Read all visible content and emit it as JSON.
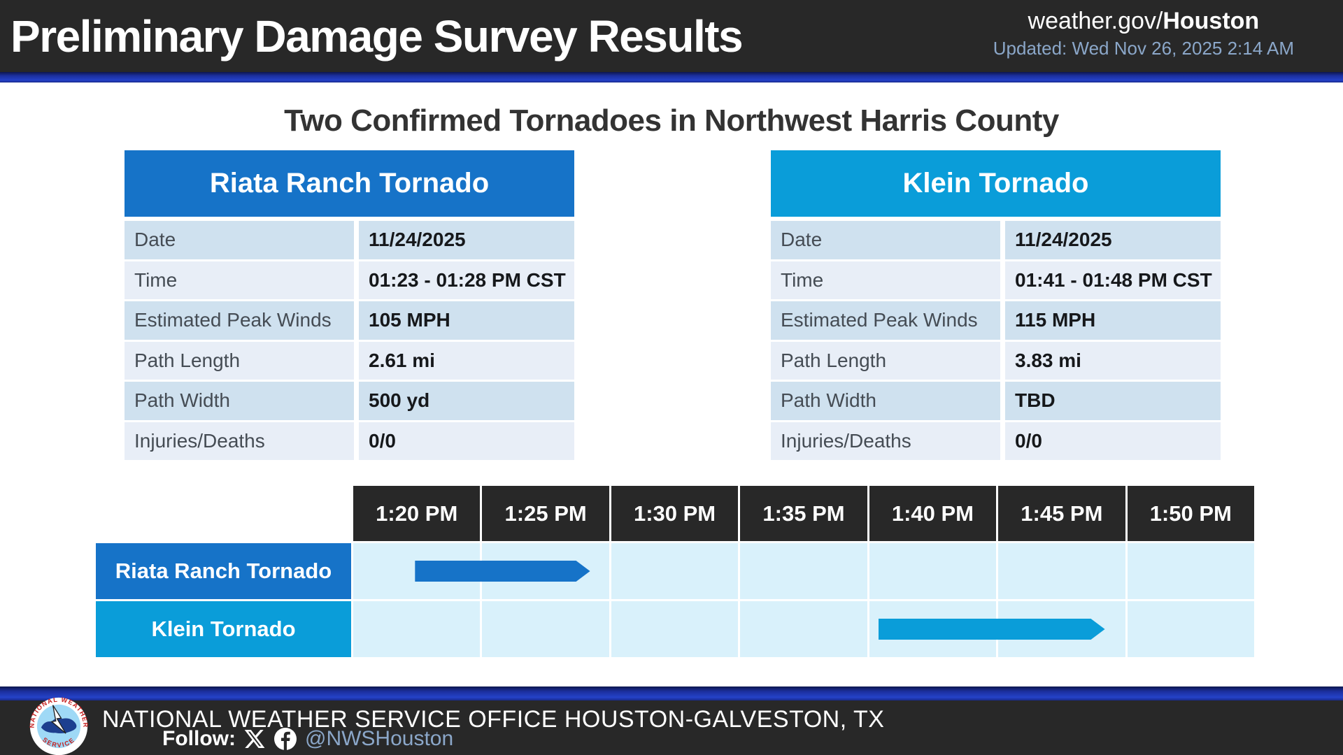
{
  "header": {
    "title": "Preliminary Damage Survey Results",
    "site_prefix": "weather.gov/",
    "site_bold": "Houston",
    "updated": "Updated: Wed Nov 26, 2025 2:14 AM"
  },
  "heading": "Two Confirmed Tornadoes in Northwest Harris County",
  "tables": [
    {
      "title": "Riata Ranch Tornado",
      "accent": "#1673c8",
      "rows": [
        {
          "label": "Date",
          "value": "11/24/2025"
        },
        {
          "label": "Time",
          "value": "01:23 - 01:28 PM CST"
        },
        {
          "label": "Estimated Peak Winds",
          "value": "105 MPH"
        },
        {
          "label": "Path Length",
          "value": "2.61 mi"
        },
        {
          "label": "Path Width",
          "value": "500 yd"
        },
        {
          "label": "Injuries/Deaths",
          "value": "0/0"
        }
      ]
    },
    {
      "title": "Klein Tornado",
      "accent": "#0a9dd9",
      "rows": [
        {
          "label": "Date",
          "value": "11/24/2025"
        },
        {
          "label": "Time",
          "value": "01:41 - 01:48 PM CST"
        },
        {
          "label": "Estimated Peak Winds",
          "value": "115 MPH"
        },
        {
          "label": "Path Length",
          "value": "3.83 mi"
        },
        {
          "label": "Path Width",
          "value": "TBD"
        },
        {
          "label": "Injuries/Deaths",
          "value": "0/0"
        }
      ]
    }
  ],
  "chart_data": {
    "type": "timeline",
    "x_ticks": [
      "1:20 PM",
      "1:25 PM",
      "1:30 PM",
      "1:35 PM",
      "1:40 PM",
      "1:45 PM",
      "1:50 PM"
    ],
    "axis_start_min": 20,
    "axis_end_min": 55,
    "axis_unit": "minutes after 1:00 PM CST",
    "rows": [
      {
        "label": "Riata Ranch Tornado",
        "start": "1:23 PM",
        "end": "1:28 PM",
        "start_min": 23,
        "end_min": 28,
        "color": "#1673c8"
      },
      {
        "label": "Klein Tornado",
        "start": "1:41 PM",
        "end": "1:48 PM",
        "start_min": 41,
        "end_min": 48,
        "color": "#0a9dd9"
      }
    ]
  },
  "footer": {
    "org": "NATIONAL WEATHER SERVICE OFFICE HOUSTON-GALVESTON, TX",
    "follow_label": "Follow:",
    "handle": "@NWSHouston",
    "icons": [
      "nws-logo",
      "x-icon",
      "facebook-icon"
    ]
  },
  "colors": {
    "header_bg": "#282828",
    "divider_blue": "#2442c8",
    "riata_blue": "#1673c8",
    "klein_blue": "#0a9dd9",
    "row_stripe_dark": "#cfe1ef",
    "row_stripe_light": "#e8eef7",
    "timeline_cell": "#d9f1fb",
    "muted_blue_text": "#8ba7c9"
  }
}
